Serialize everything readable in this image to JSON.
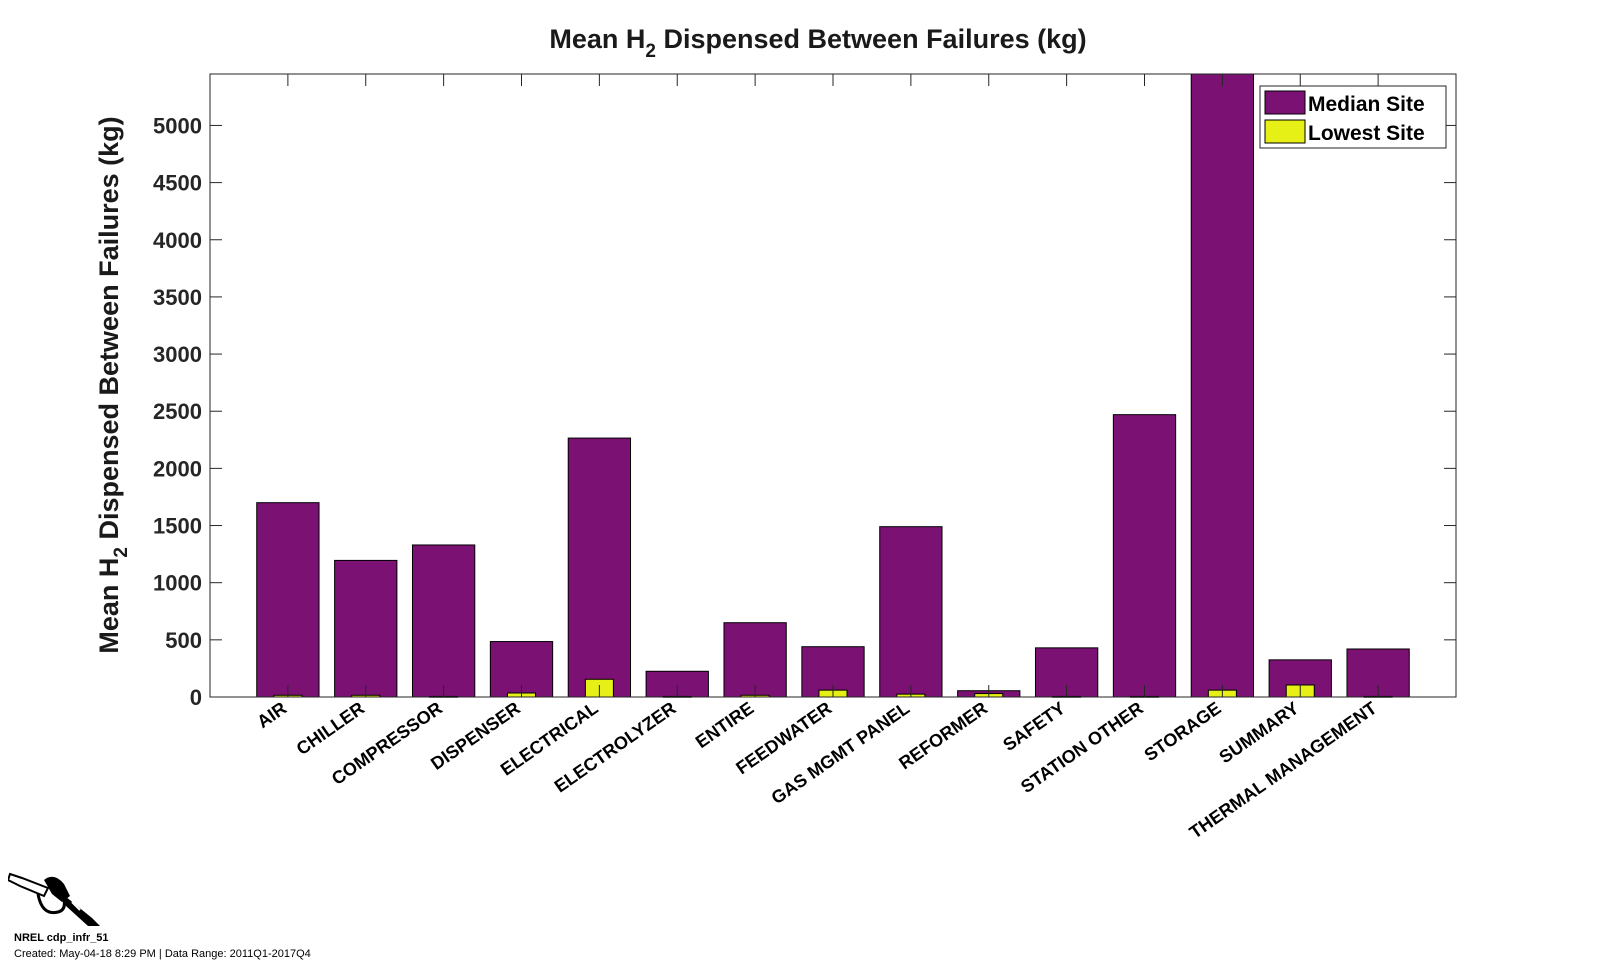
{
  "chart_data": {
    "type": "bar",
    "title": "Mean H",
    "title_sub": "2",
    "title_rest": " Dispensed Between Failures (kg)",
    "ylabel": "Mean H",
    "ylabel_sub": "2",
    "ylabel_rest": " Dispensed Between Failures (kg)",
    "xlabel": "",
    "ylim": [
      0,
      5450
    ],
    "yticks": [
      0,
      500,
      1000,
      1500,
      2000,
      2500,
      3000,
      3500,
      4000,
      4500,
      5000
    ],
    "grid": false,
    "legend_position": "top-right",
    "categories": [
      "AIR",
      "CHILLER",
      "COMPRESSOR",
      "DISPENSER",
      "ELECTRICAL",
      "ELECTROLYZER",
      "ENTIRE",
      "FEEDWATER",
      "GAS MGMT PANEL",
      "REFORMER",
      "SAFETY",
      "STATION OTHER",
      "STORAGE",
      "SUMMARY",
      "THERMAL MANAGEMENT"
    ],
    "series": [
      {
        "name": "Median Site",
        "color": "#7b1173",
        "values": [
          1700,
          1195,
          1330,
          485,
          2265,
          225,
          650,
          440,
          1490,
          55,
          430,
          2470,
          5450,
          325,
          420
        ]
      },
      {
        "name": "Lowest Site",
        "color": "#e6ef16",
        "values": [
          15,
          15,
          5,
          35,
          155,
          5,
          15,
          60,
          25,
          30,
          5,
          5,
          60,
          105,
          5
        ]
      }
    ]
  },
  "footer": {
    "id": "NREL cdp_infr_51",
    "created": "Created: May-04-18  8:29 PM | Data Range: 2011Q1-2017Q4"
  },
  "icons": {
    "logo": "fuel-nozzle-icon"
  }
}
